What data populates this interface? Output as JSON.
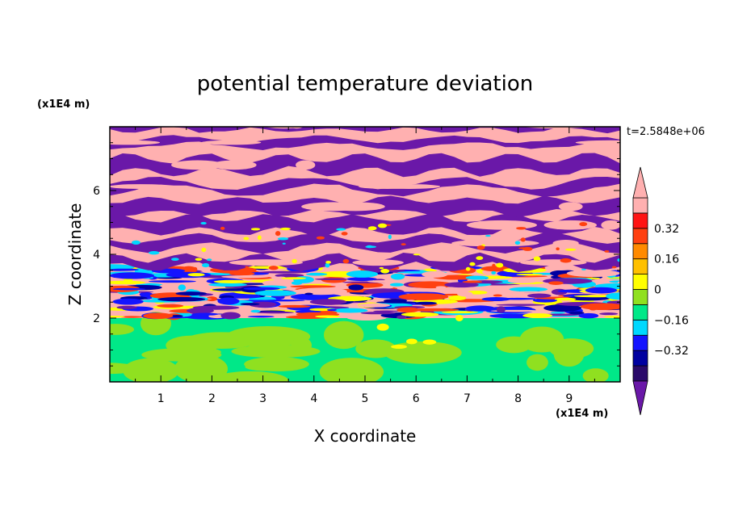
{
  "chart_data": {
    "type": "heatmap",
    "title": "potential temperature deviation",
    "xlabel": "X coordinate",
    "ylabel": "Z coordinate",
    "x_unit": "(x1E4 m)",
    "y_unit": "(x1E4 m)",
    "time_label": "t=2.5848e+06",
    "xlim": [
      0,
      10
    ],
    "ylim": [
      0,
      8
    ],
    "x_ticks": [
      "1",
      "2",
      "3",
      "4",
      "5",
      "6",
      "7",
      "8",
      "9"
    ],
    "y_ticks": [
      "2",
      "4",
      "6"
    ],
    "colorbar": {
      "levels": [
        -0.48,
        -0.4,
        -0.32,
        -0.24,
        -0.16,
        -0.08,
        0,
        0.08,
        0.16,
        0.24,
        0.32,
        0.4,
        0.48
      ],
      "tick_labels": [
        "0.32",
        "0.16",
        "0",
        "−0.16",
        "−0.32"
      ],
      "tick_values": [
        0.32,
        0.16,
        0,
        -0.16,
        -0.32
      ],
      "band_colors": [
        "#2a0a6a",
        "#0000a0",
        "#1414ff",
        "#00d8ff",
        "#00e888",
        "#90e020",
        "#ffff00",
        "#ffc000",
        "#ff8a00",
        "#ff4010",
        "#ff1414",
        "#ffb0b0"
      ],
      "under_color": "#6a18a8",
      "over_color": "#ffb0b0"
    },
    "fields": {
      "lower_layer": {
        "z_range": [
          0,
          2
        ],
        "values": [
          -0.02,
          0.05
        ],
        "colors": [
          "#00e888",
          "#90e020"
        ]
      },
      "transition_layer": {
        "z_range": [
          2,
          3.6
        ],
        "colors": [
          "#6a18a8",
          "#ffb0b0",
          "#ff4010",
          "#ffff00",
          "#00d8ff",
          "#1414ff",
          "#0000a0"
        ]
      },
      "upper_layer": {
        "z_range": [
          3.6,
          8
        ],
        "colors": [
          "#6a18a8",
          "#ffb0b0"
        ]
      }
    }
  }
}
